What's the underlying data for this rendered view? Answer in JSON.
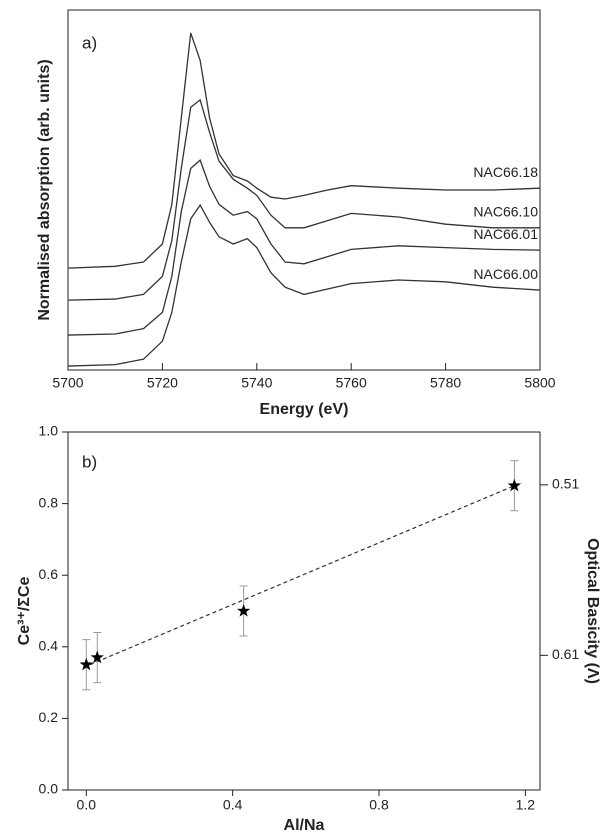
{
  "chart_data": [
    {
      "type": "line",
      "panel_label": "a)",
      "x_label": "Energy (eV)",
      "y_label": "Normalised absorption (arb. units)",
      "x": [
        5700,
        5710,
        5716,
        5720,
        5722,
        5724,
        5726,
        5728,
        5730,
        5732,
        5735,
        5738,
        5740,
        5743,
        5746,
        5750,
        5755,
        5760,
        5770,
        5780,
        5790,
        5800
      ],
      "xlim": [
        5700,
        5800
      ],
      "xticks": [
        5700,
        5720,
        5740,
        5760,
        5780,
        5800
      ],
      "ylim": [
        0,
        10
      ],
      "series": [
        {
          "name": "NAC66.18",
          "color": "#333333",
          "values": [
            2.83,
            2.88,
            3.0,
            3.5,
            4.6,
            7.0,
            9.36,
            8.6,
            7.0,
            6.0,
            5.4,
            5.25,
            5.05,
            4.8,
            4.75,
            4.85,
            5.0,
            5.12,
            5.05,
            5.0,
            5.0,
            5.05
          ]
        },
        {
          "name": "NAC66.10",
          "color": "#333333",
          "values": [
            1.94,
            1.97,
            2.1,
            2.6,
            3.6,
            5.6,
            7.3,
            7.5,
            6.6,
            5.8,
            5.3,
            5.05,
            4.85,
            4.3,
            3.95,
            3.95,
            4.15,
            4.35,
            4.25,
            4.05,
            3.95,
            3.95
          ]
        },
        {
          "name": "NAC66.01",
          "color": "#333333",
          "values": [
            0.97,
            1.0,
            1.15,
            1.6,
            2.6,
            4.4,
            5.6,
            5.83,
            5.1,
            4.6,
            4.3,
            4.4,
            4.2,
            3.5,
            3.0,
            2.95,
            3.15,
            3.35,
            3.45,
            3.4,
            3.35,
            3.33
          ]
        },
        {
          "name": "NAC66.00",
          "color": "#333333",
          "values": [
            0.11,
            0.15,
            0.3,
            0.8,
            1.6,
            3.0,
            4.2,
            4.58,
            4.1,
            3.7,
            3.5,
            3.65,
            3.4,
            2.7,
            2.3,
            2.1,
            2.25,
            2.4,
            2.5,
            2.45,
            2.3,
            2.22
          ]
        }
      ]
    },
    {
      "type": "scatter",
      "panel_label": "b)",
      "x_label": "Al/Na",
      "y_label": "Ce³⁺/ΣCe",
      "y2_label": "Optical Basicity (Λ)",
      "x": [
        0.0,
        0.03,
        0.43,
        1.17
      ],
      "values": [
        0.35,
        0.37,
        0.5,
        0.85
      ],
      "errors": [
        0.07,
        0.07,
        0.07,
        0.07
      ],
      "color": "#000000",
      "fit": {
        "x": [
          0.01,
          1.17
        ],
        "values": [
          0.35,
          0.85
        ],
        "style": "dashed",
        "color": "#333333"
      },
      "xlim": [
        -0.05,
        1.24
      ],
      "xticks": [
        {
          "value": 0,
          "label": "0.0"
        },
        {
          "value": 0.4,
          "label": "0.4"
        },
        {
          "value": 0.8,
          "label": "0.8"
        },
        {
          "value": 1.2,
          "label": "1.2"
        }
      ],
      "ylim": [
        0,
        1
      ],
      "yticks": [
        {
          "value": 0,
          "label": "0.0"
        },
        0.2,
        0.4,
        0.6,
        0.8,
        {
          "value": 1,
          "label": "1.0"
        }
      ],
      "y2lim": [
        0.689,
        0.479
      ],
      "y2ticks": [
        0.51,
        0.61
      ]
    }
  ]
}
